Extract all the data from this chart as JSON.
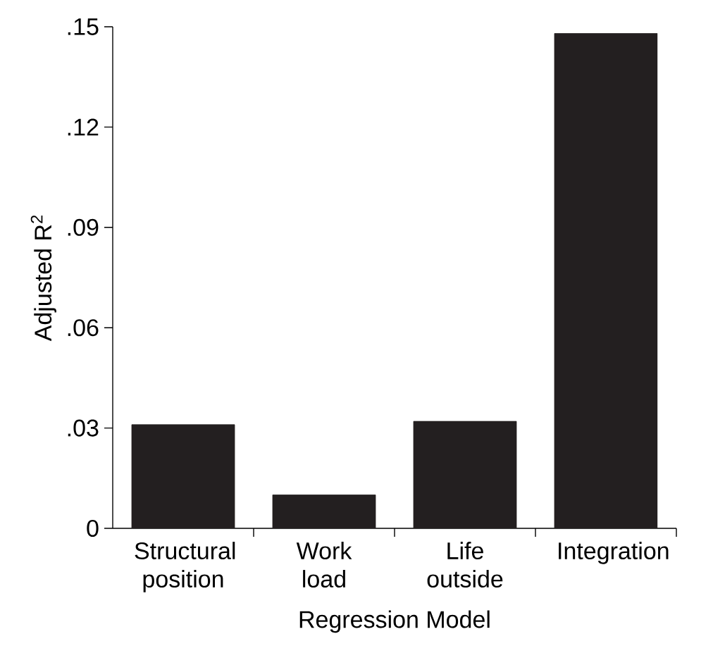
{
  "chart_data": {
    "type": "bar",
    "xlabel": "Regression Model",
    "ylabel": "Adjusted R$^{2}$",
    "categories": [
      "Structural position",
      "Work load",
      "Life outside",
      "Integration"
    ],
    "values": [
      0.031,
      0.01,
      0.032,
      0.148
    ],
    "color": "#231f20",
    "ylim": [
      0,
      0.15
    ],
    "yticks": [
      {
        "value": 0,
        "label": "0"
      },
      {
        "value": 0.03,
        "label": ".03"
      },
      {
        "value": 0.06,
        "label": ".06"
      },
      {
        "value": 0.09,
        "label": ".09"
      },
      {
        "value": 0.12,
        "label": ".12"
      },
      {
        "value": 0.15,
        "label": ".15"
      }
    ],
    "grid": false
  }
}
